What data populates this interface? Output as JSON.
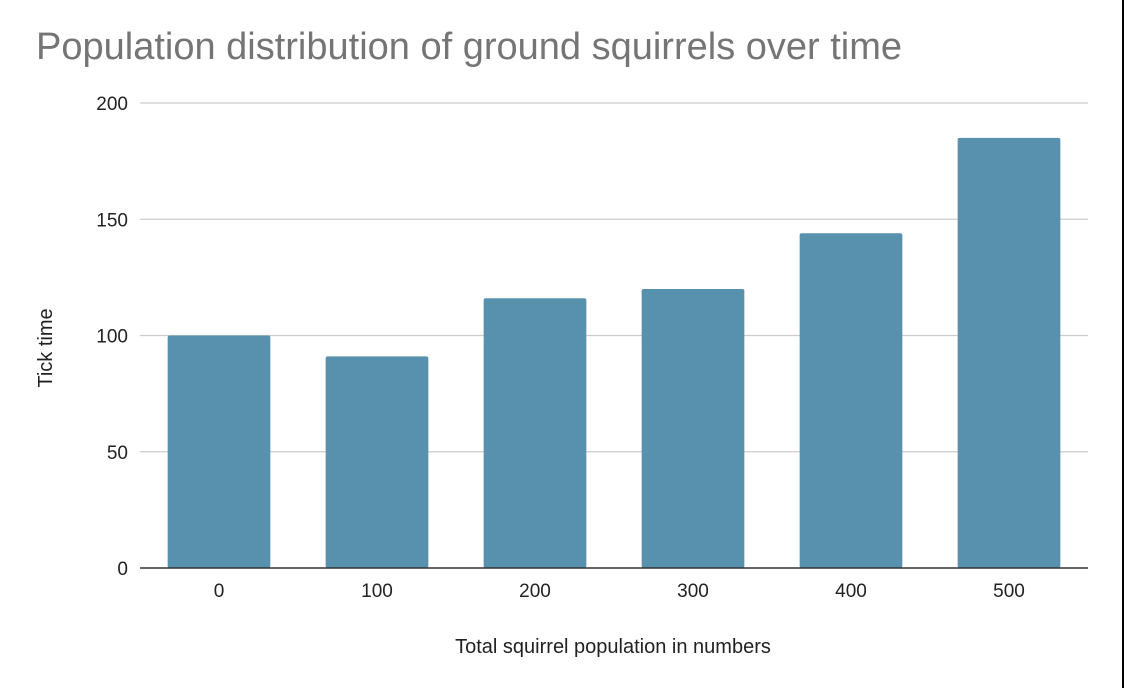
{
  "chart_data": {
    "type": "bar",
    "title": "Population distribution of ground squirrels over time",
    "xlabel": "Total squirrel population in numbers",
    "ylabel": "Tick time",
    "categories": [
      "0",
      "100",
      "200",
      "300",
      "400",
      "500"
    ],
    "values": [
      100,
      91,
      116,
      120,
      144,
      185
    ],
    "ylim": [
      0,
      200
    ],
    "yticks": [
      0,
      50,
      100,
      150,
      200
    ],
    "grid": true,
    "legend": "none",
    "bar_color": "#5891ae",
    "grid_color": "#cccccc",
    "title_color": "#757575"
  }
}
